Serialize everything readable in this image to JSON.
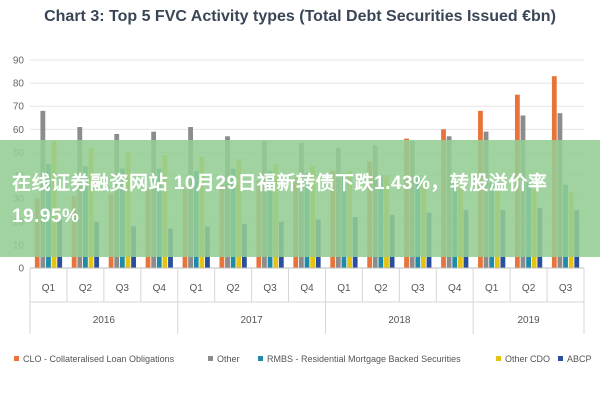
{
  "chart_data": {
    "type": "bar",
    "title": "Chart 3: Top 5 FVC Activity types (Total Debt Securities Issued €bn)",
    "ylim": [
      0,
      90
    ],
    "yticks": [
      0,
      10,
      20,
      30,
      40,
      50,
      60,
      70,
      80,
      90
    ],
    "grid": true,
    "legend_position": "bottom",
    "categories": [
      "Q1",
      "Q2",
      "Q3",
      "Q4",
      "Q1",
      "Q2",
      "Q3",
      "Q4",
      "Q1",
      "Q2",
      "Q3",
      "Q4",
      "Q1",
      "Q2",
      "Q3"
    ],
    "years": [
      {
        "label": "2016",
        "start": 0,
        "count": 4
      },
      {
        "label": "2017",
        "start": 4,
        "count": 4
      },
      {
        "label": "2018",
        "start": 8,
        "count": 4
      },
      {
        "label": "2019",
        "start": 12,
        "count": 3
      }
    ],
    "series": [
      {
        "name": "CLO - Collateralised Loan Obligations",
        "color": "#e8743b",
        "values": [
          30,
          31,
          32,
          34,
          34,
          36,
          38,
          39,
          42,
          46,
          56,
          60,
          68,
          75,
          83
        ]
      },
      {
        "name": "Other",
        "color": "#8c8c8c",
        "values": [
          68,
          61,
          58,
          59,
          61,
          57,
          55,
          54,
          52,
          53,
          55,
          57,
          59,
          66,
          67
        ]
      },
      {
        "name": "RMBS - Residential Mortgage Backed Securities",
        "color": "#1f8ba8",
        "values": [
          45,
          44,
          43,
          43,
          42,
          43,
          42,
          41,
          41,
          40,
          40,
          38,
          37,
          37,
          36
        ]
      },
      {
        "name": "Other CDO",
        "color": "#e6c30f",
        "values": [
          55,
          52,
          50,
          49,
          48,
          47,
          45,
          44,
          42,
          40,
          38,
          36,
          35,
          34,
          33
        ]
      },
      {
        "name": "ABCP",
        "color": "#2a4f9e",
        "values": [
          21,
          20,
          18,
          17,
          18,
          19,
          20,
          21,
          22,
          23,
          24,
          25,
          25,
          26,
          25
        ]
      }
    ]
  },
  "overlay": {
    "text": "在线证券融资网站 10月29日福新转债下跌1.43%，转股溢价率19.95%"
  }
}
